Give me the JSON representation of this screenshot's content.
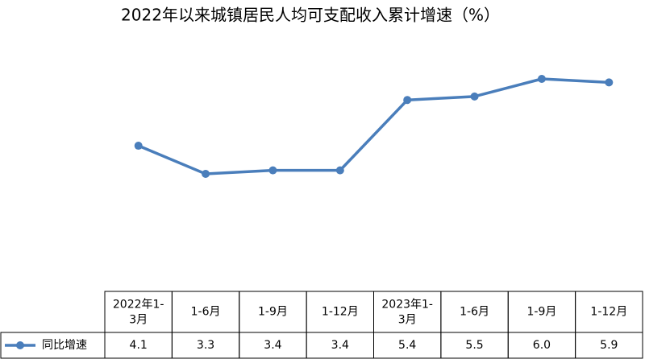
{
  "chart_data": {
    "type": "line",
    "title": "2022年以来城镇居民人均可支配收入累计增速（%）",
    "categories": [
      "2022年1-3月",
      "1-6月",
      "1-9月",
      "1-12月",
      "2023年1-3月",
      "1-6月",
      "1-9月",
      "1-12月"
    ],
    "series": [
      {
        "name": "同比增速",
        "color": "#4a7ebb",
        "values": [
          4.1,
          3.3,
          3.4,
          3.4,
          5.4,
          5.5,
          6.0,
          5.9
        ],
        "value_labels": [
          "4.1",
          "3.3",
          "3.4",
          "3.4",
          "5.4",
          "5.5",
          "6.0",
          "5.9"
        ]
      }
    ]
  }
}
